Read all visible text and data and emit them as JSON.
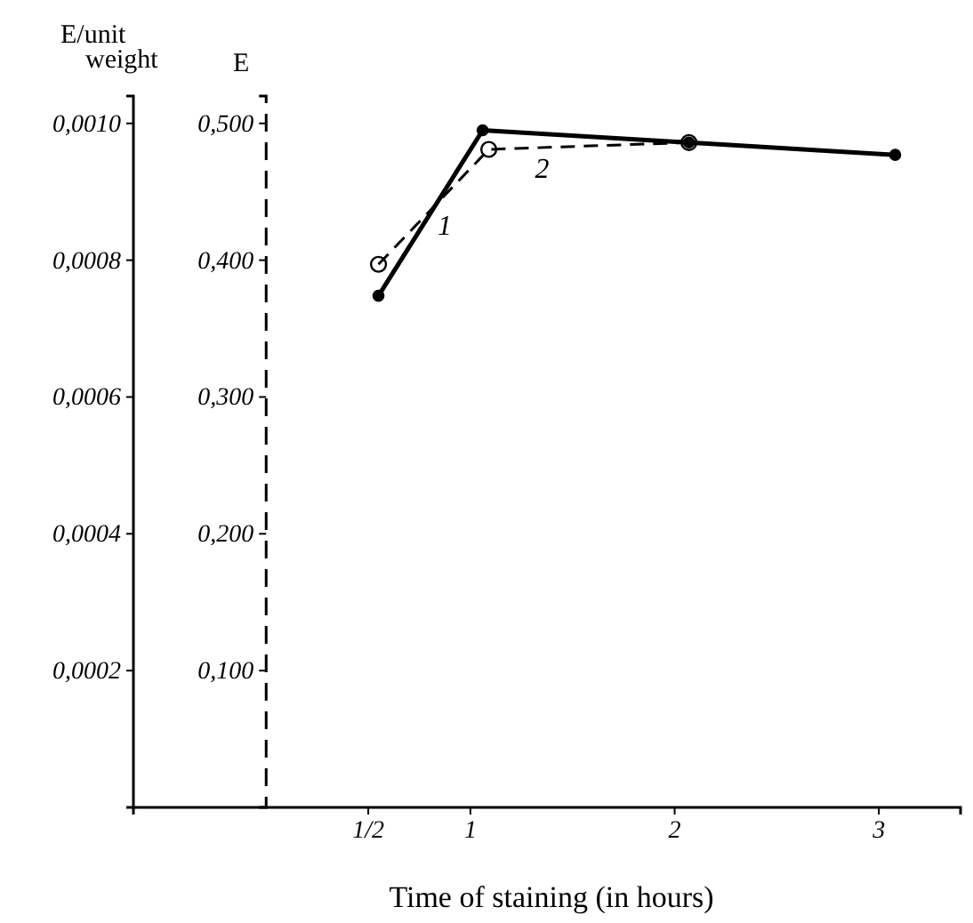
{
  "chart_data": {
    "type": "line",
    "xlabel": "Time of staining (in hours)",
    "ylabel": "E",
    "y2label": "E/unit weight",
    "xlim": [
      -0.65,
      3.4
    ],
    "xticks": [
      {
        "value": 0.5,
        "label": "1/2"
      },
      1,
      2,
      3
    ],
    "ylim": [
      0,
      0.52
    ],
    "yticks": [
      {
        "value": 0.1,
        "label": "0,100"
      },
      {
        "value": 0.2,
        "label": "0,200"
      },
      {
        "value": 0.3,
        "label": "0,300"
      },
      {
        "value": 0.4,
        "label": "0,400"
      },
      {
        "value": 0.5,
        "label": "0,500"
      }
    ],
    "y2lim": [
      0,
      0.00104
    ],
    "y2ticks": [
      {
        "value": 0.0002,
        "label": "0,0002"
      },
      {
        "value": 0.0004,
        "label": "0,0004"
      },
      {
        "value": 0.0006,
        "label": "0,0006"
      },
      {
        "value": 0.0008,
        "label": "0,0008"
      },
      {
        "value": 0.001,
        "label": "0,0010"
      }
    ],
    "marker": "circle",
    "grid": false,
    "legend": false,
    "series": [
      {
        "name": "1",
        "color": "#000000",
        "line_style": "solid",
        "x": [
          0.55,
          1.06,
          2.07,
          3.08
        ],
        "values": [
          0.374,
          0.495,
          0.486,
          0.477
        ]
      },
      {
        "name": "2",
        "color": "#000000",
        "line_style": "dashed",
        "x": [
          0.55,
          1.09,
          2.07
        ],
        "values": [
          0.397,
          0.481,
          0.486
        ]
      }
    ]
  }
}
